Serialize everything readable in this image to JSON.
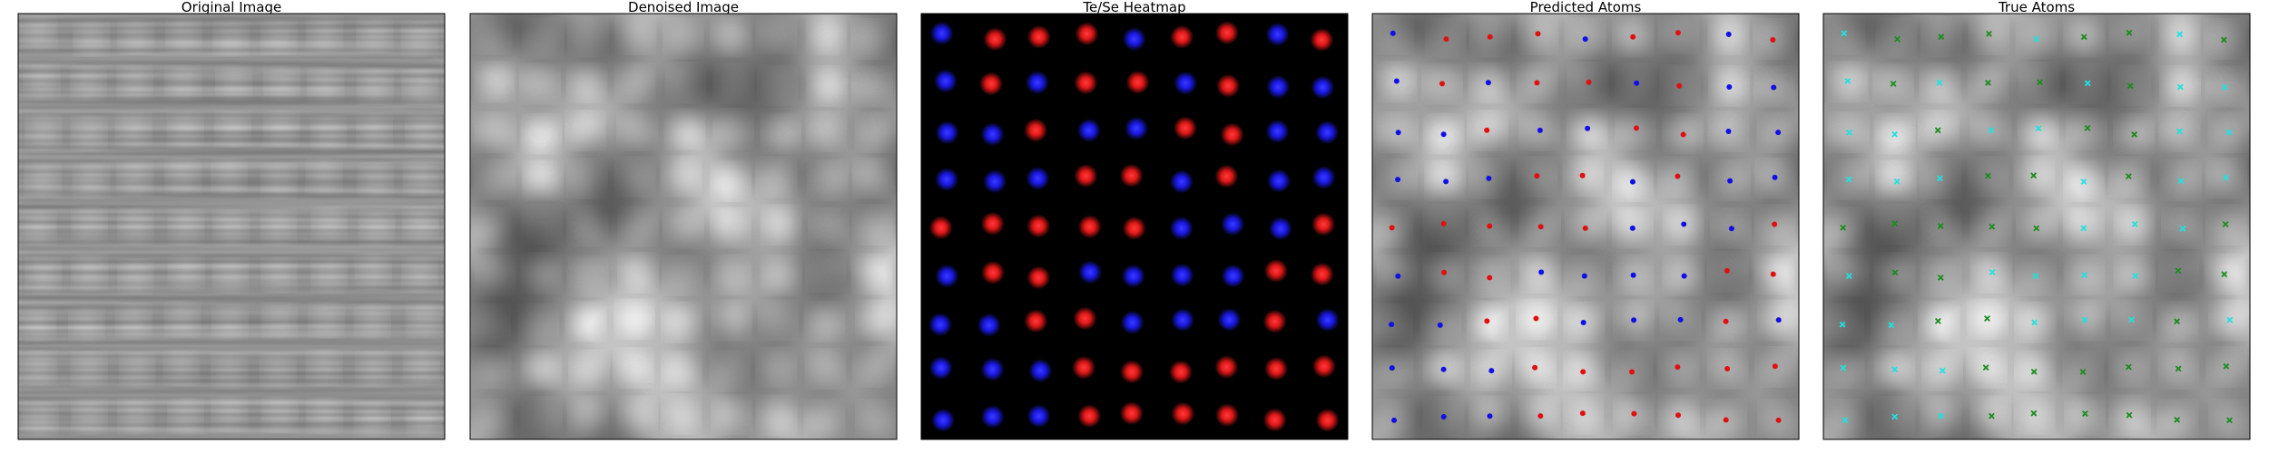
{
  "chart_data": [
    {
      "type": "image",
      "title": "Original Image",
      "colormap": "gray",
      "grid": false,
      "axes": false
    },
    {
      "type": "image",
      "title": "Denoised Image",
      "colormap": "gray",
      "grid": false,
      "axes": false
    },
    {
      "type": "heatmap",
      "title": "Te/Se Heatmap",
      "background": "#000000",
      "grid": false,
      "axes": false,
      "colors": {
        "Te": "#e01818",
        "Se": "#1a1ae6"
      },
      "rows": [
        [
          "Se",
          "Te",
          "Te",
          "Te",
          "Se",
          "Te",
          "Te",
          "Se",
          "Te"
        ],
        [
          "Se",
          "Te",
          "Se",
          "Te",
          "Te",
          "Se",
          "Te",
          "Se",
          "Se"
        ],
        [
          "Se",
          "Se",
          "Te",
          "Se",
          "Se",
          "Te",
          "Te",
          "Se",
          "Se"
        ],
        [
          "Se",
          "Se",
          "Se",
          "Te",
          "Te",
          "Se",
          "Te",
          "Se",
          "Se"
        ],
        [
          "Te",
          "Te",
          "Te",
          "Te",
          "Te",
          "Se",
          "Se",
          "Se",
          "Te"
        ],
        [
          "Se",
          "Te",
          "Te",
          "Se",
          "Se",
          "Se",
          "Se",
          "Te",
          "Te"
        ],
        [
          "Se",
          "Se",
          "Te",
          "Te",
          "Se",
          "Se",
          "Se",
          "Te",
          "Se"
        ],
        [
          "Se",
          "Se",
          "Se",
          "Te",
          "Te",
          "Te",
          "Te",
          "Te",
          "Te"
        ],
        [
          "Se",
          "Se",
          "Se",
          "Te",
          "Te",
          "Te",
          "Te",
          "Te",
          "Te"
        ]
      ]
    },
    {
      "type": "scatter",
      "title": "Predicted Atoms",
      "background": "denoised-image",
      "marker": "dot",
      "grid": false,
      "axes": false,
      "series_colors": {
        "Te": "#e01010",
        "Se": "#1010e6"
      },
      "rows": [
        [
          "Se",
          "Te",
          "Te",
          "Te",
          "Se",
          "Te",
          "Te",
          "Se",
          "Te"
        ],
        [
          "Se",
          "Te",
          "Se",
          "Te",
          "Te",
          "Se",
          "Te",
          "Se",
          "Se"
        ],
        [
          "Se",
          "Se",
          "Te",
          "Se",
          "Se",
          "Te",
          "Te",
          "Se",
          "Se"
        ],
        [
          "Se",
          "Se",
          "Se",
          "Te",
          "Te",
          "Se",
          "Te",
          "Se",
          "Se"
        ],
        [
          "Te",
          "Te",
          "Te",
          "Te",
          "Te",
          "Se",
          "Se",
          "Se",
          "Te"
        ],
        [
          "Se",
          "Te",
          "Te",
          "Se",
          "Se",
          "Se",
          "Se",
          "Te",
          "Te"
        ],
        [
          "Se",
          "Se",
          "Te",
          "Te",
          "Se",
          "Se",
          "Se",
          "Te",
          "Se"
        ],
        [
          "Se",
          "Se",
          "Se",
          "Te",
          "Te",
          "Te",
          "Te",
          "Te",
          "Te"
        ],
        [
          "Se",
          "Se",
          "Se",
          "Te",
          "Te",
          "Te",
          "Te",
          "Te",
          "Te"
        ]
      ]
    },
    {
      "type": "scatter",
      "title": "True Atoms",
      "background": "denoised-image",
      "marker": "x",
      "grid": false,
      "axes": false,
      "series_colors": {
        "Te": "#1a8c1a",
        "Se": "#22e0e0"
      },
      "rows": [
        [
          "Se",
          "Te",
          "Te",
          "Te",
          "Se",
          "Te",
          "Te",
          "Se",
          "Te"
        ],
        [
          "Se",
          "Te",
          "Se",
          "Te",
          "Te",
          "Se",
          "Te",
          "Se",
          "Se"
        ],
        [
          "Se",
          "Se",
          "Te",
          "Se",
          "Se",
          "Te",
          "Te",
          "Se",
          "Se"
        ],
        [
          "Se",
          "Se",
          "Se",
          "Te",
          "Te",
          "Se",
          "Te",
          "Se",
          "Se"
        ],
        [
          "Te",
          "Te",
          "Te",
          "Te",
          "Te",
          "Se",
          "Se",
          "Se",
          "Te"
        ],
        [
          "Se",
          "Te",
          "Te",
          "Se",
          "Se",
          "Se",
          "Se",
          "Te",
          "Te"
        ],
        [
          "Se",
          "Se",
          "Te",
          "Te",
          "Se",
          "Se",
          "Se",
          "Te",
          "Se"
        ],
        [
          "Se",
          "Se",
          "Se",
          "Te",
          "Te",
          "Te",
          "Te",
          "Te",
          "Te"
        ],
        [
          "Se",
          "Se",
          "Se",
          "Te",
          "Te",
          "Te",
          "Te",
          "Te",
          "Te"
        ]
      ]
    }
  ]
}
